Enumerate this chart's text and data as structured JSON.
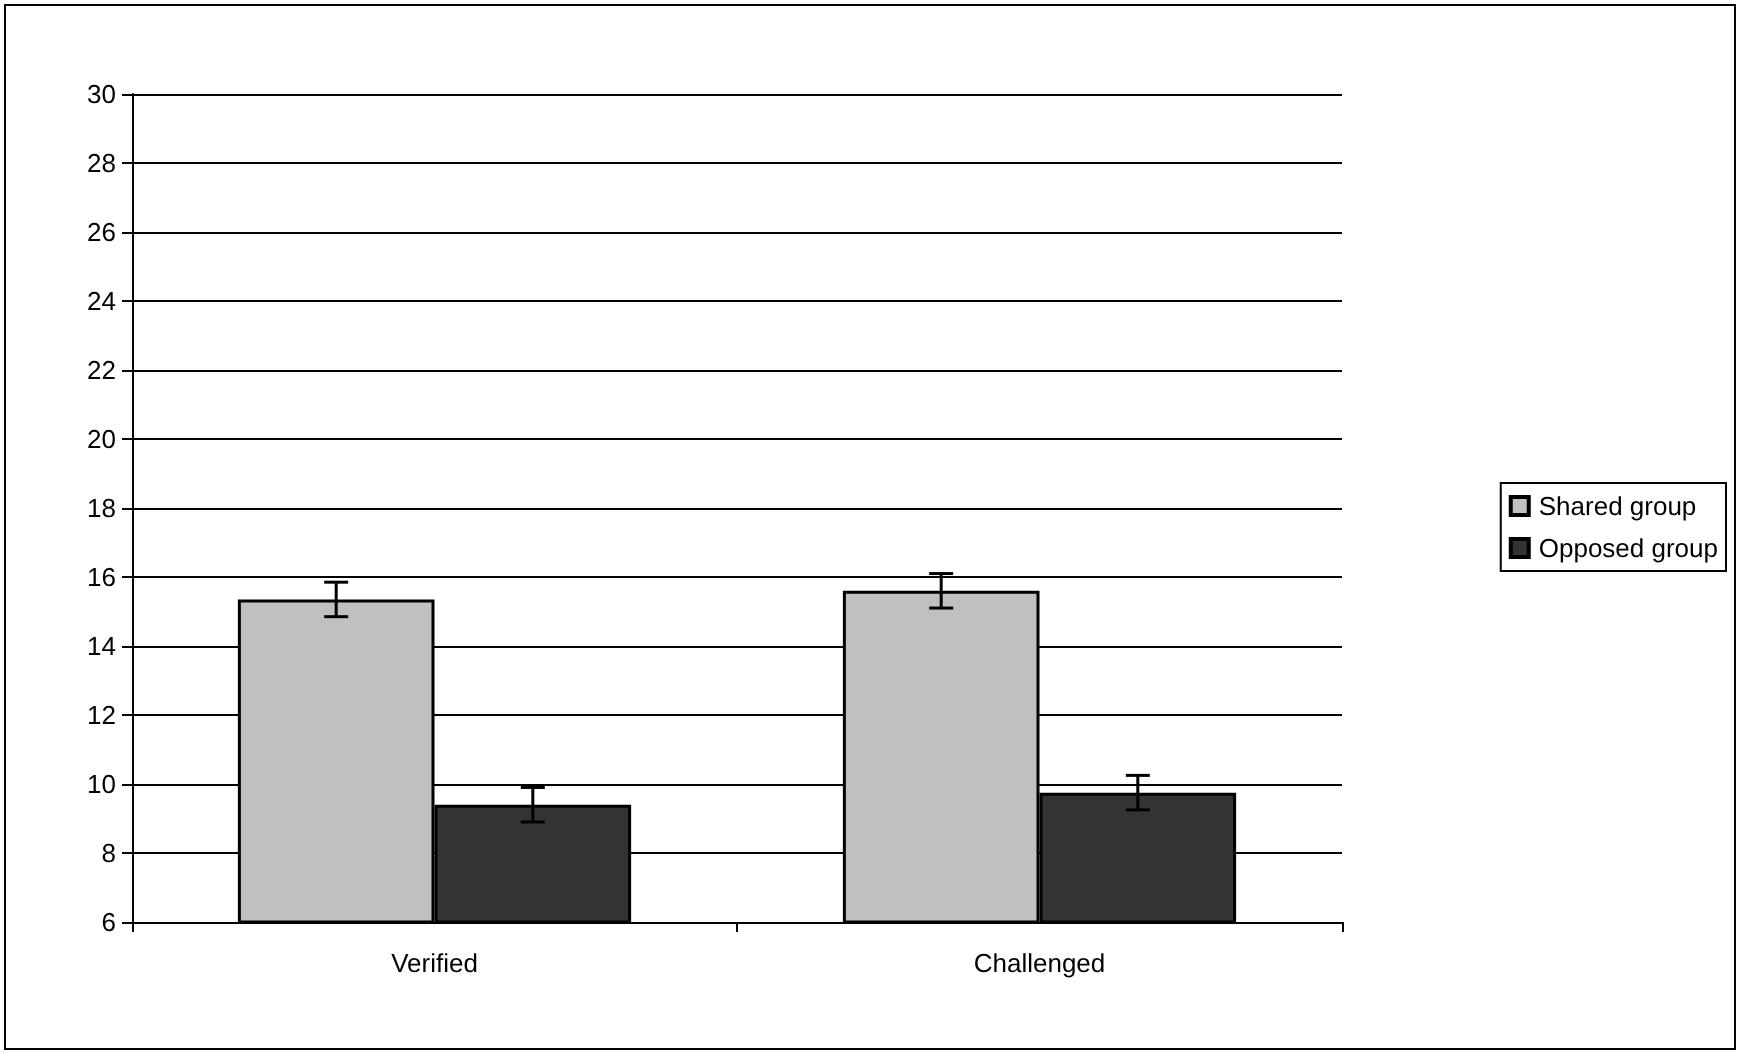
{
  "chart_data": {
    "type": "bar",
    "categories": [
      "Verified",
      "Challenged"
    ],
    "series": [
      {
        "name": "Shared group",
        "color": "#c0c0c0",
        "values": [
          15.35,
          15.6
        ],
        "errors": [
          0.5,
          0.5
        ]
      },
      {
        "name": "Opposed group",
        "color": "#333333",
        "values": [
          9.4,
          9.75
        ],
        "errors": [
          0.5,
          0.5
        ]
      }
    ],
    "ylim": [
      6,
      30
    ],
    "yticks": [
      6,
      8,
      10,
      12,
      14,
      16,
      18,
      20,
      22,
      24,
      26,
      28,
      30
    ],
    "grid": "y",
    "legend": "right"
  }
}
